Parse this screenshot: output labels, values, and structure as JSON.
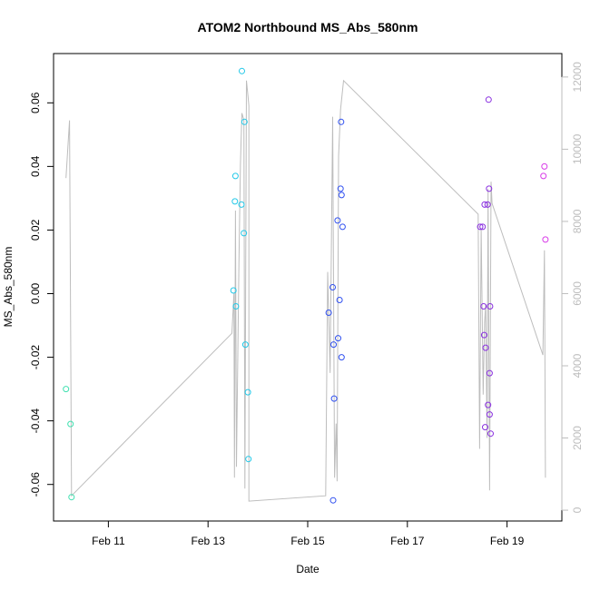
{
  "chart_data": {
    "type": "scatter",
    "title": "ATOM2 Northbound MS_Abs_580nm",
    "xlabel": "Date",
    "ylabel": "MS_Abs_580nm",
    "x_ticks": [
      {
        "value": 11,
        "label": "Feb 11"
      },
      {
        "value": 13,
        "label": "Feb 13"
      },
      {
        "value": 15,
        "label": "Feb 15"
      },
      {
        "value": 17,
        "label": "Feb 17"
      },
      {
        "value": 19,
        "label": "Feb 19"
      }
    ],
    "xlim": [
      9.9,
      20.1
    ],
    "ylim": [
      -0.0715,
      0.0755
    ],
    "y_ticks": [
      -0.06,
      -0.04,
      -0.02,
      0.0,
      0.02,
      0.04,
      0.06
    ],
    "y_tick_labels": [
      "-0.06",
      "-0.04",
      "-0.02",
      "0.00",
      "0.02",
      "0.04",
      "0.06"
    ],
    "y2lim": [
      -300,
      12650
    ],
    "y2_ticks": [
      0,
      2000,
      4000,
      6000,
      8000,
      10000,
      12000
    ],
    "y2_tick_labels": [
      "0",
      "2000",
      "4000",
      "6000",
      "8000",
      "10000",
      "12000"
    ],
    "grid": false,
    "series": [
      {
        "color": "#40e0b0",
        "points": [
          [
            10.15,
            -0.03
          ],
          [
            10.24,
            -0.041
          ],
          [
            10.26,
            -0.064
          ]
        ]
      },
      {
        "color": "#22c8e8",
        "points": [
          [
            13.68,
            0.07
          ],
          [
            13.55,
            0.037
          ],
          [
            13.73,
            0.054
          ],
          [
            13.54,
            0.029
          ],
          [
            13.67,
            0.028
          ],
          [
            13.72,
            0.019
          ],
          [
            13.51,
            0.001
          ],
          [
            13.56,
            -0.004
          ],
          [
            13.75,
            -0.016
          ],
          [
            13.8,
            -0.031
          ],
          [
            13.81,
            -0.052
          ]
        ]
      },
      {
        "color": "#3050f0",
        "points": [
          [
            15.67,
            0.054
          ],
          [
            15.66,
            0.033
          ],
          [
            15.68,
            0.031
          ],
          [
            15.7,
            0.021
          ],
          [
            15.6,
            0.023
          ],
          [
            15.5,
            0.002
          ],
          [
            15.64,
            -0.002
          ],
          [
            15.42,
            -0.006
          ],
          [
            15.61,
            -0.014
          ],
          [
            15.52,
            -0.016
          ],
          [
            15.68,
            -0.02
          ],
          [
            15.53,
            -0.033
          ],
          [
            15.51,
            -0.065
          ]
        ]
      },
      {
        "color": "#8a30e0",
        "points": [
          [
            18.63,
            0.061
          ],
          [
            18.64,
            0.033
          ],
          [
            18.55,
            0.028
          ],
          [
            18.61,
            0.028
          ],
          [
            18.51,
            0.021
          ],
          [
            18.46,
            0.021
          ],
          [
            18.53,
            -0.004
          ],
          [
            18.66,
            -0.004
          ],
          [
            18.54,
            -0.013
          ],
          [
            18.57,
            -0.017
          ],
          [
            18.65,
            -0.025
          ],
          [
            18.62,
            -0.035
          ],
          [
            18.65,
            -0.038
          ],
          [
            18.56,
            -0.042
          ],
          [
            18.67,
            -0.044
          ]
        ]
      },
      {
        "color": "#d83ae8",
        "points": [
          [
            19.75,
            0.04
          ],
          [
            19.73,
            0.037
          ],
          [
            19.77,
            0.017
          ]
        ]
      }
    ],
    "secondary_line": {
      "color": "#bdbdbd",
      "axis": "right",
      "points": [
        [
          10.15,
          9200
        ],
        [
          10.22,
          10800
        ],
        [
          10.26,
          400
        ],
        [
          13.48,
          4900
        ],
        [
          13.52,
          6000
        ],
        [
          13.53,
          900
        ],
        [
          13.55,
          8300
        ],
        [
          13.57,
          1200
        ],
        [
          13.62,
          6800
        ],
        [
          13.65,
          9600
        ],
        [
          13.68,
          11000
        ],
        [
          13.72,
          10800
        ],
        [
          13.74,
          600
        ],
        [
          13.77,
          11900
        ],
        [
          13.8,
          11500
        ],
        [
          13.82,
          11200
        ],
        [
          13.82,
          250
        ],
        [
          15.36,
          400
        ],
        [
          15.4,
          6600
        ],
        [
          15.45,
          3800
        ],
        [
          15.5,
          10900
        ],
        [
          15.54,
          900
        ],
        [
          15.57,
          2400
        ],
        [
          15.59,
          800
        ],
        [
          15.62,
          9800
        ],
        [
          15.66,
          11100
        ],
        [
          15.72,
          11900
        ],
        [
          18.42,
          8200
        ],
        [
          18.45,
          1700
        ],
        [
          18.48,
          7800
        ],
        [
          18.52,
          3200
        ],
        [
          18.55,
          5200
        ],
        [
          18.57,
          5700
        ],
        [
          18.6,
          2000
        ],
        [
          18.62,
          8900
        ],
        [
          18.65,
          550
        ],
        [
          18.68,
          9100
        ],
        [
          18.7,
          8500
        ],
        [
          19.72,
          4300
        ],
        [
          19.75,
          7200
        ],
        [
          19.77,
          900
        ]
      ]
    }
  }
}
